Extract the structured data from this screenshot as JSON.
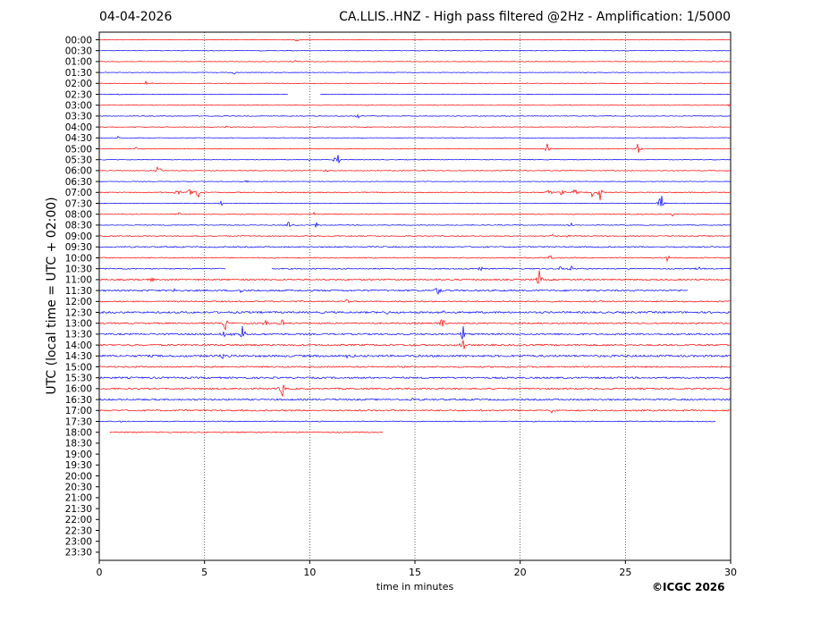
{
  "header": {
    "date": "04-04-2026",
    "title": "CA.LLIS..HNZ - High pass filtered @2Hz - Amplification: 1/5000"
  },
  "footer": {
    "copyright": "©ICGC 2026"
  },
  "chart_data": {
    "type": "line",
    "title": "CA.LLIS..HNZ - High pass filtered @2Hz - Amplification: 1/5000",
    "subtitle": "04-04-2026",
    "xlabel": "time in minutes",
    "ylabel": "UTC (local time = UTC + 02:00)",
    "xlim": [
      0,
      30
    ],
    "x_ticks": [
      0,
      5,
      10,
      15,
      20,
      25,
      30
    ],
    "x_gridlines": [
      5,
      10,
      15,
      20,
      25
    ],
    "grid": "vertical dotted",
    "colors": {
      "odd_row": "#ff0000",
      "even_row": "#0000ff"
    },
    "rows": [
      {
        "label": "00:00",
        "noise": 0.3,
        "events": [
          [
            9.4,
            2.5
          ]
        ],
        "range": [
          0,
          30
        ]
      },
      {
        "label": "00:30",
        "noise": 0.3,
        "events": [],
        "range": [
          0,
          30
        ]
      },
      {
        "label": "01:00",
        "noise": 0.3,
        "events": [
          [
            9.3,
            2.5
          ]
        ],
        "range": [
          0,
          30
        ]
      },
      {
        "label": "01:30",
        "noise": 0.3,
        "events": [
          [
            6.4,
            2.5
          ]
        ],
        "range": [
          0,
          30
        ]
      },
      {
        "label": "02:00",
        "noise": 0.3,
        "events": [
          [
            2.2,
            3
          ]
        ],
        "range": [
          0,
          30
        ]
      },
      {
        "label": "02:30",
        "noise": 0.3,
        "events": [
          [
            1,
            2
          ]
        ],
        "range": [
          0,
          9
        ],
        "range2": [
          10.5,
          30
        ]
      },
      {
        "label": "03:00",
        "noise": 0.3,
        "events": [
          [
            29.9,
            3
          ]
        ],
        "range": [
          0,
          30
        ]
      },
      {
        "label": "03:30",
        "noise": 0.4,
        "events": [
          [
            12.3,
            3
          ],
          [
            24.5,
            2
          ]
        ],
        "range": [
          0,
          30
        ]
      },
      {
        "label": "04:00",
        "noise": 0.3,
        "events": [
          [
            6,
            2
          ]
        ],
        "range": [
          0,
          30
        ]
      },
      {
        "label": "04:30",
        "noise": 0.3,
        "events": [
          [
            0.9,
            2
          ]
        ],
        "range": [
          0,
          30
        ]
      },
      {
        "label": "05:00",
        "noise": 0.4,
        "events": [
          [
            1.7,
            3
          ],
          [
            21.3,
            7
          ],
          [
            25.6,
            8
          ]
        ],
        "range": [
          0,
          30
        ]
      },
      {
        "label": "05:30",
        "noise": 0.3,
        "events": [
          [
            10,
            3
          ],
          [
            11.3,
            15
          ]
        ],
        "range": [
          0,
          30
        ]
      },
      {
        "label": "06:00",
        "noise": 0.4,
        "events": [
          [
            2.8,
            9
          ],
          [
            10.8,
            3
          ]
        ],
        "range": [
          0,
          30
        ]
      },
      {
        "label": "06:30",
        "noise": 0.3,
        "events": [
          [
            7,
            2.5
          ]
        ],
        "range": [
          0,
          30
        ]
      },
      {
        "label": "07:00",
        "noise": 0.5,
        "events": [
          [
            3.7,
            7
          ],
          [
            4.3,
            7
          ],
          [
            4.7,
            8
          ],
          [
            21.4,
            9
          ],
          [
            22,
            8
          ],
          [
            22.6,
            7
          ],
          [
            23.4,
            7
          ],
          [
            23.8,
            11
          ]
        ],
        "range": [
          0,
          30
        ]
      },
      {
        "label": "07:30",
        "noise": 0.3,
        "events": [
          [
            5.8,
            3
          ],
          [
            26.7,
            18
          ]
        ],
        "range": [
          0,
          30
        ]
      },
      {
        "label": "08:00",
        "noise": 0.4,
        "events": [
          [
            3.8,
            2.5
          ],
          [
            10.2,
            3
          ],
          [
            27.2,
            3
          ]
        ],
        "range": [
          0,
          30
        ]
      },
      {
        "label": "08:30",
        "noise": 0.4,
        "events": [
          [
            9,
            6
          ],
          [
            10.3,
            6
          ],
          [
            22.4,
            4
          ]
        ],
        "range": [
          0,
          30
        ]
      },
      {
        "label": "09:00",
        "noise": 0.5,
        "events": [
          [
            21.5,
            3
          ],
          [
            22.3,
            2.5
          ]
        ],
        "range": [
          0,
          30
        ]
      },
      {
        "label": "09:30",
        "noise": 0.7,
        "events": [],
        "range": [
          0,
          30
        ]
      },
      {
        "label": "10:00",
        "noise": 0.6,
        "events": [
          [
            21.4,
            6
          ],
          [
            27,
            4
          ]
        ],
        "range": [
          0,
          30
        ]
      },
      {
        "label": "10:30",
        "noise": 0.6,
        "events": [
          [
            18.1,
            4
          ],
          [
            21.9,
            5
          ],
          [
            22.4,
            7
          ],
          [
            28.5,
            4
          ]
        ],
        "range": [
          0,
          6
        ],
        "range2": [
          8.2,
          30
        ]
      },
      {
        "label": "11:00",
        "noise": 0.8,
        "events": [
          [
            2.5,
            3
          ],
          [
            20.9,
            12
          ]
        ],
        "range": [
          0,
          30
        ]
      },
      {
        "label": "11:30",
        "noise": 0.9,
        "events": [
          [
            3.6,
            3
          ],
          [
            6.7,
            4
          ],
          [
            16.1,
            11
          ]
        ],
        "range": [
          0,
          28
        ]
      },
      {
        "label": "12:00",
        "noise": 0.7,
        "events": [
          [
            11.8,
            3
          ]
        ],
        "range": [
          0,
          30
        ]
      },
      {
        "label": "12:30",
        "noise": 1,
        "events": [
          [
            7.5,
            3
          ],
          [
            13.7,
            4
          ],
          [
            16.3,
            7
          ]
        ],
        "range": [
          0,
          30
        ]
      },
      {
        "label": "13:00",
        "noise": 0.8,
        "events": [
          [
            6,
            13
          ],
          [
            7.9,
            6
          ],
          [
            8.7,
            6
          ],
          [
            16.3,
            11
          ]
        ],
        "range": [
          0,
          30
        ]
      },
      {
        "label": "13:30",
        "noise": 0.9,
        "events": [
          [
            5.9,
            8
          ],
          [
            6.4,
            9
          ],
          [
            6.8,
            13
          ],
          [
            17.3,
            12
          ]
        ],
        "range": [
          0,
          30
        ]
      },
      {
        "label": "14:00",
        "noise": 0.9,
        "events": [
          [
            1.6,
            3
          ],
          [
            17.3,
            9
          ]
        ],
        "range": [
          0,
          30
        ]
      },
      {
        "label": "14:30",
        "noise": 1.1,
        "events": [
          [
            5.9,
            4
          ],
          [
            11.8,
            3
          ]
        ],
        "range": [
          0,
          30
        ]
      },
      {
        "label": "15:00",
        "noise": 0.8,
        "events": [],
        "range": [
          0,
          30
        ]
      },
      {
        "label": "15:30",
        "noise": 0.9,
        "events": [],
        "range": [
          0,
          30
        ]
      },
      {
        "label": "16:00",
        "noise": 0.8,
        "events": [
          [
            8.7,
            12
          ]
        ],
        "range": [
          0,
          30
        ]
      },
      {
        "label": "16:30",
        "noise": 0.9,
        "events": [
          [
            14.9,
            3
          ]
        ],
        "range": [
          0,
          30
        ]
      },
      {
        "label": "17:00",
        "noise": 0.8,
        "events": [
          [
            21.5,
            2.5
          ]
        ],
        "range": [
          0,
          30
        ]
      },
      {
        "label": "17:30",
        "noise": 0.5,
        "events": [
          [
            1,
            2
          ]
        ],
        "range": [
          0,
          29.3
        ]
      },
      {
        "label": "18:00",
        "noise": 0.6,
        "events": [],
        "range": [
          0.5,
          13.5
        ]
      },
      {
        "label": "18:30"
      },
      {
        "label": "19:00"
      },
      {
        "label": "19:30"
      },
      {
        "label": "20:00"
      },
      {
        "label": "20:30"
      },
      {
        "label": "21:00"
      },
      {
        "label": "21:30"
      },
      {
        "label": "22:00"
      },
      {
        "label": "22:30"
      },
      {
        "label": "23:00"
      },
      {
        "label": "23:30"
      }
    ]
  }
}
